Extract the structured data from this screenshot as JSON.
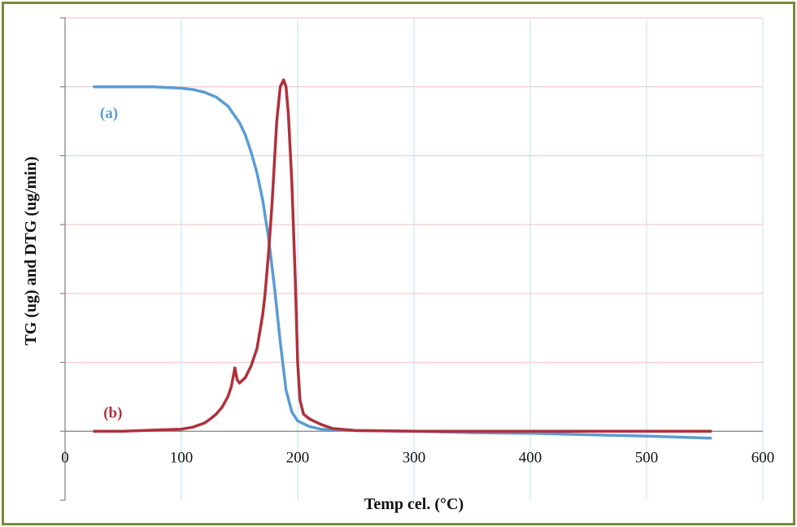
{
  "chart_data": {
    "type": "line",
    "title": "",
    "xlabel": "Temp cel. (°C)",
    "ylabel": "TG (ug) and DTG (ug/min)",
    "xlim": [
      0,
      600
    ],
    "xticks": [
      "0",
      "100",
      "200",
      "300",
      "400",
      "500",
      "600"
    ],
    "ylim": [
      -1,
      6
    ],
    "y_tick_labels_shown": false,
    "grid": true,
    "colors": {
      "tg": "#5b9bd5",
      "dtg": "#b0303b",
      "grid": "#f2c0c0",
      "gridv": "#bfe0f0",
      "axis": "#808080",
      "frame": "#7a8a3a"
    },
    "series": [
      {
        "name": "(a)",
        "color": "#5b9bd5",
        "x": [
          25,
          50,
          75,
          100,
          110,
          120,
          130,
          140,
          145,
          150,
          155,
          160,
          165,
          170,
          175,
          180,
          185,
          190,
          195,
          200,
          210,
          220,
          250,
          300,
          350,
          400,
          450,
          500,
          555
        ],
        "y": [
          5.0,
          5.0,
          5.0,
          4.98,
          4.96,
          4.92,
          4.85,
          4.72,
          4.6,
          4.48,
          4.3,
          4.05,
          3.75,
          3.35,
          2.8,
          2.1,
          1.3,
          0.6,
          0.28,
          0.15,
          0.07,
          0.03,
          0.01,
          0.0,
          -0.02,
          -0.03,
          -0.05,
          -0.07,
          -0.1
        ]
      },
      {
        "name": "(b)",
        "color": "#b0303b",
        "x": [
          25,
          50,
          80,
          100,
          110,
          120,
          125,
          130,
          135,
          140,
          143,
          146,
          148,
          150,
          155,
          160,
          165,
          170,
          172,
          175,
          178,
          180,
          182,
          185,
          188,
          190,
          192,
          195,
          198,
          200,
          202,
          205,
          210,
          215,
          220,
          230,
          250,
          300,
          400,
          500,
          555
        ],
        "y": [
          0.0,
          0.0,
          0.02,
          0.03,
          0.06,
          0.12,
          0.18,
          0.25,
          0.35,
          0.5,
          0.65,
          0.92,
          0.75,
          0.7,
          0.78,
          0.95,
          1.2,
          1.7,
          2.0,
          2.6,
          3.3,
          3.9,
          4.5,
          5.0,
          5.1,
          5.0,
          4.6,
          3.6,
          2.2,
          1.0,
          0.45,
          0.25,
          0.18,
          0.14,
          0.1,
          0.04,
          0.01,
          0.0,
          0.0,
          0.0,
          0.0
        ]
      }
    ],
    "annotations": [
      {
        "text": "(a)",
        "series": 0
      },
      {
        "text": "(b)",
        "series": 1
      }
    ]
  }
}
